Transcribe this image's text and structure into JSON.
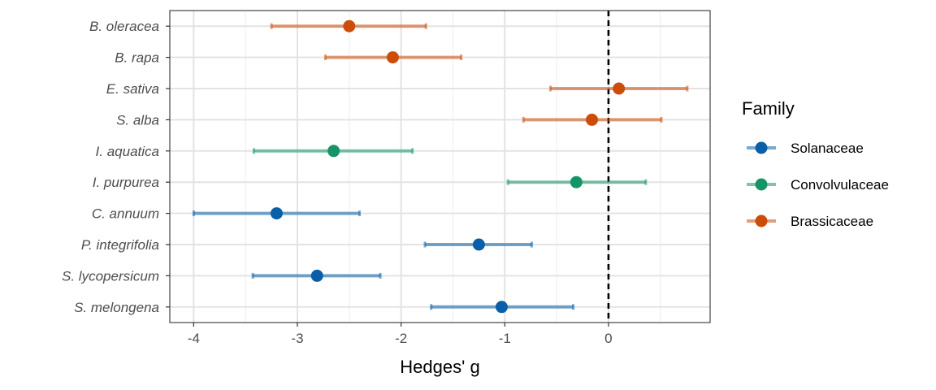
{
  "chart_data": {
    "type": "scatter",
    "subtype": "forest-plot",
    "title": "",
    "xlabel": "Hedges' g",
    "ylabel": "",
    "xlim": [
      -4.23,
      0.98
    ],
    "x_ticks": [
      -4,
      -3,
      -2,
      -1,
      0
    ],
    "x_tick_labels": [
      "-4",
      "-3",
      "-2",
      "-1",
      "0"
    ],
    "reference_line": {
      "x": 0,
      "style": "dashed",
      "color": "#000000"
    },
    "grid": true,
    "legend": {
      "title": "Family",
      "position": "right",
      "entries": [
        {
          "name": "Solanaceae",
          "color": "#0a5fa8"
        },
        {
          "name": "Convolvulaceae",
          "color": "#159466"
        },
        {
          "name": "Brassicaceae",
          "color": "#cc4c0a"
        }
      ]
    },
    "categories": [
      "B. oleracea",
      "B. rapa",
      "E. sativa",
      "S. alba",
      "I. aquatica",
      "I. purpurea",
      "C. annuum",
      "P. integrifolia",
      "S. lycopersicum",
      "S. melongena"
    ],
    "points": [
      {
        "label": "B. oleracea",
        "family": "Brassicaceae",
        "estimate": -2.5,
        "lower": -3.25,
        "upper": -1.76
      },
      {
        "label": "B. rapa",
        "family": "Brassicaceae",
        "estimate": -2.08,
        "lower": -2.73,
        "upper": -1.42
      },
      {
        "label": "E. sativa",
        "family": "Brassicaceae",
        "estimate": 0.1,
        "lower": -0.56,
        "upper": 0.76
      },
      {
        "label": "S. alba",
        "family": "Brassicaceae",
        "estimate": -0.16,
        "lower": -0.82,
        "upper": 0.51
      },
      {
        "label": "I. aquatica",
        "family": "Convolvulaceae",
        "estimate": -2.65,
        "lower": -3.42,
        "upper": -1.89
      },
      {
        "label": "I. purpurea",
        "family": "Convolvulaceae",
        "estimate": -0.31,
        "lower": -0.97,
        "upper": 0.36
      },
      {
        "label": "C. annuum",
        "family": "Solanaceae",
        "estimate": -3.2,
        "lower": -4.0,
        "upper": -2.4
      },
      {
        "label": "P. integrifolia",
        "family": "Solanaceae",
        "estimate": -1.25,
        "lower": -1.77,
        "upper": -0.74
      },
      {
        "label": "S. lycopersicum",
        "family": "Solanaceae",
        "estimate": -2.81,
        "lower": -3.43,
        "upper": -2.2
      },
      {
        "label": "S. melongena",
        "family": "Solanaceae",
        "estimate": -1.03,
        "lower": -1.71,
        "upper": -0.34
      }
    ]
  }
}
